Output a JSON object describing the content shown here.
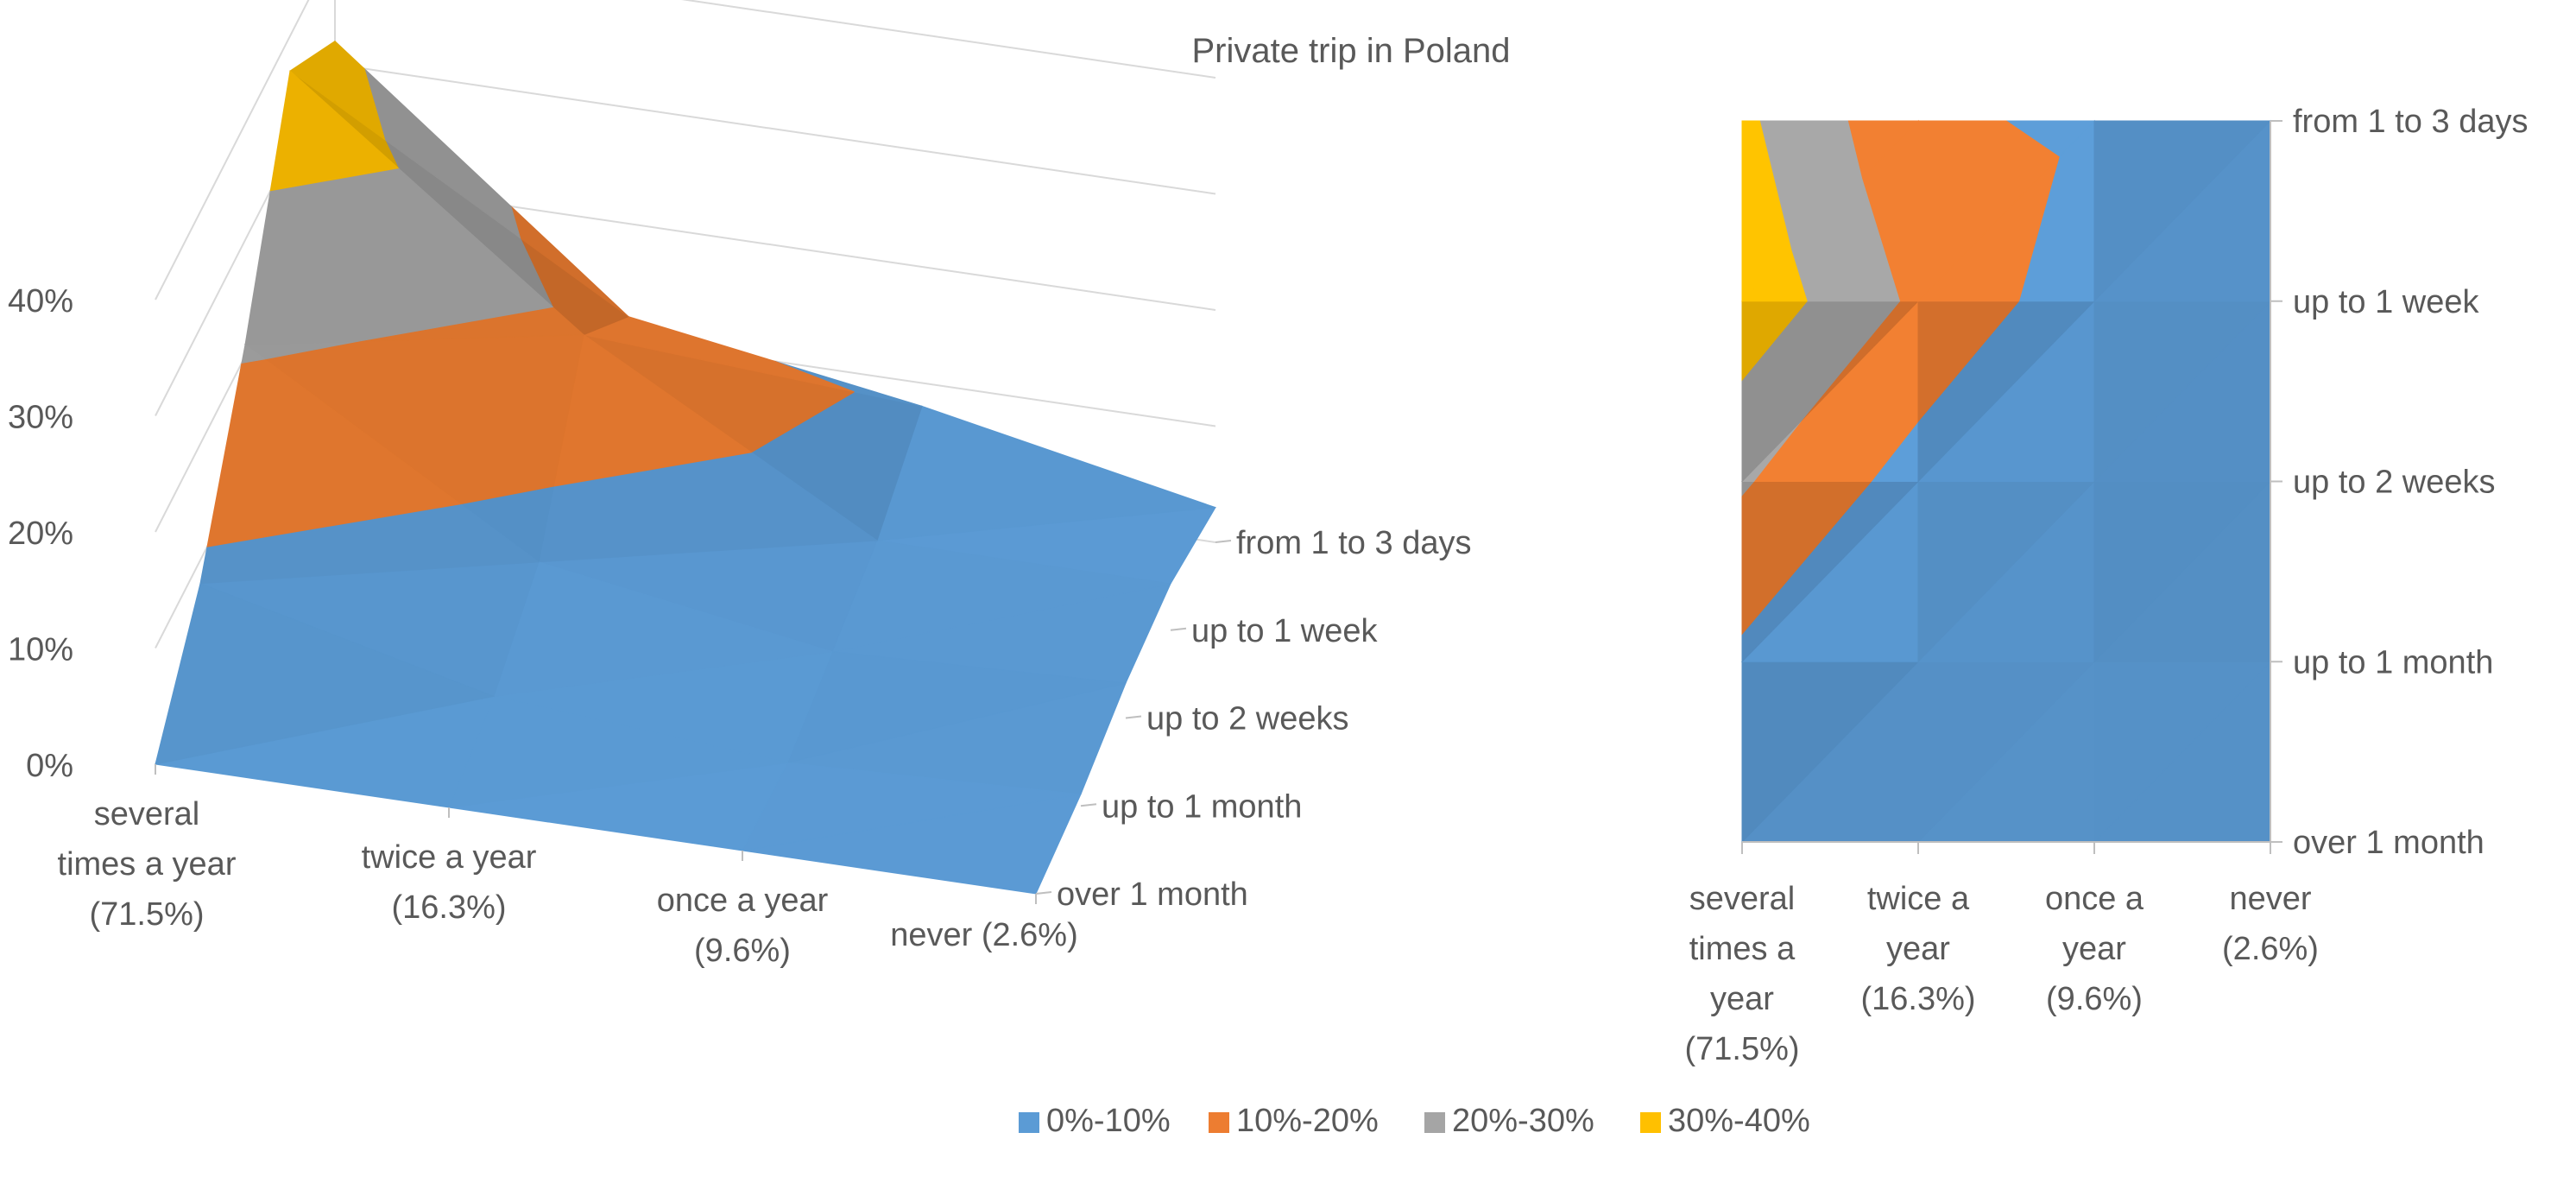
{
  "chart_data": {
    "type": "surface",
    "title": "Private trip in Poland",
    "x_categories": [
      "several times a year (71.5%)",
      "twice a year (16.3%)",
      "once a year (9.6%)",
      "never (2.6%)"
    ],
    "x_label_lines": [
      [
        "several",
        "times a year",
        "(71.5%)"
      ],
      [
        "twice a year",
        "(16.3%)"
      ],
      [
        "once a year",
        "(9.6%)"
      ],
      [
        "never (2.6%)"
      ]
    ],
    "contour_x_label_lines": [
      [
        "several",
        "times a",
        "year",
        "(71.5%)"
      ],
      [
        "twice a",
        "year",
        "(16.3%)"
      ],
      [
        "once a",
        "year",
        "(9.6%)"
      ],
      [
        "never",
        "(2.6%)"
      ]
    ],
    "y_categories": [
      "over 1 month",
      "up to 1 month",
      "up to 2 weeks",
      "up to 1 week",
      "from 1 to 3 days"
    ],
    "z_axis": {
      "min": 0,
      "max": 40,
      "step": 10,
      "tick_labels": [
        "0%",
        "10%",
        "20%",
        "30%",
        "40%"
      ]
    },
    "series": [
      {
        "name": "over 1 month",
        "values": [
          0,
          0,
          0,
          0
        ]
      },
      {
        "name": "up to 1 month",
        "values": [
          8,
          2,
          0,
          1
        ]
      },
      {
        "name": "up to 2 weeks",
        "values": [
          21,
          6,
          2,
          3
        ]
      },
      {
        "name": "up to 1 week",
        "values": [
          37,
          18,
          4,
          4
        ]
      },
      {
        "name": "from 1 to 3 days",
        "values": [
          32,
          12,
          8,
          3
        ]
      }
    ],
    "legend": {
      "position": "bottom",
      "items": [
        {
          "label": "0%-10%",
          "color": "#5B9BD5"
        },
        {
          "label": "10%-20%",
          "color": "#ED7D31"
        },
        {
          "label": "20%-30%",
          "color": "#A5A5A5"
        },
        {
          "label": "30%-40%",
          "color": "#FFC000"
        }
      ]
    }
  }
}
